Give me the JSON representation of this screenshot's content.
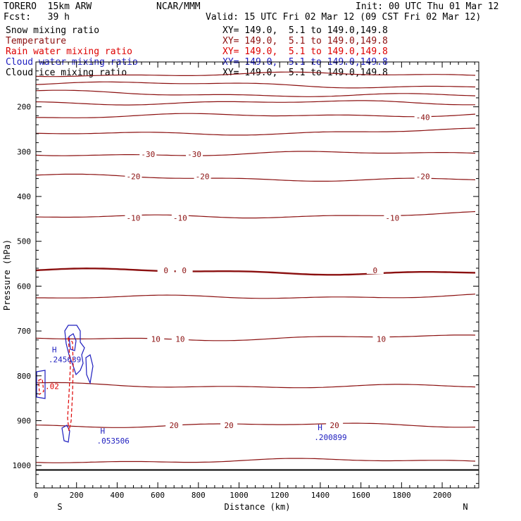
{
  "header": {
    "model": "TORERO  15km ARW",
    "center": "NCAR/MMM",
    "init": "Init: 00 UTC Thu 01 Mar 12",
    "fcst": "Fcst:   39 h",
    "valid": "Valid: 15 UTC Fri 02 Mar 12 (09 CST Fri 02 Mar 12)"
  },
  "fields": [
    {
      "label": "Snow mixing ratio",
      "xy": "",
      "color": "#000000"
    },
    {
      "label": "Temperature",
      "xy": "XY= 149.0,  5.1 to 149.0,149.8",
      "color": "#8b1010"
    },
    {
      "label": "Rain water mixing ratio",
      "xy": "XY= 149.0,  5.1 to 149.0,149.8",
      "color": "#dd0000"
    },
    {
      "label": "Cloud water mixing ratio",
      "xy": "XY= 149.0,  5.1 to 149.0,149.8",
      "color": "#1d1dbf"
    },
    {
      "label": "Cloud ice mixing ratio",
      "xy": "XY= 149.0,  5.1 to 149.0,149.8",
      "color": "#000000"
    }
  ],
  "first_xy": "XY= 149.0,  5.1 to 149.0,149.8",
  "chart_data": {
    "type": "line",
    "xlabel": "Distance (km)",
    "ylabel": "Pressure (hPa)",
    "xlim": [
      0,
      2180
    ],
    "ylim": [
      1050,
      100
    ],
    "xticks": [
      0,
      200,
      400,
      600,
      800,
      1000,
      1200,
      1400,
      1600,
      1800,
      2000
    ],
    "yticks": [
      200,
      300,
      400,
      500,
      600,
      700,
      800,
      900,
      1000
    ],
    "x_end_labels": {
      "left": "S",
      "right": "N"
    },
    "temperature_isotherms": [
      {
        "value": -40,
        "pressure": 128
      },
      {
        "value": -40,
        "pressure": 147
      },
      {
        "value": -40,
        "pressure": 168
      },
      {
        "value": -40,
        "pressure": 190
      },
      {
        "value": -40,
        "pressure": 223,
        "label": "-40",
        "label_x": 1905
      },
      {
        "value": -30,
        "pressure": 262
      },
      {
        "value": -30,
        "pressure": 306,
        "label": "-30",
        "label_x": 552
      },
      {
        "value": -30,
        "pressure": 306,
        "label": "-30",
        "label_x": 780
      },
      {
        "value": -20,
        "pressure": 355,
        "label": "-20",
        "label_x": 480
      },
      {
        "value": -20,
        "pressure": 355,
        "label": "-20",
        "label_x": 820
      },
      {
        "value": -20,
        "pressure": 355,
        "label": "-20",
        "label_x": 1905
      },
      {
        "value": -10,
        "pressure": 448,
        "label": "-10",
        "label_x": 480
      },
      {
        "value": -10,
        "pressure": 448,
        "label": "-10",
        "label_x": 710
      },
      {
        "value": -10,
        "pressure": 448,
        "label": "-10",
        "label_x": 1755
      },
      {
        "value": 0,
        "pressure": 565,
        "label": "0",
        "label_x": 640
      },
      {
        "value": 0,
        "pressure": 565,
        "label": "0",
        "label_x": 730
      },
      {
        "value": 0,
        "pressure": 565,
        "label": "0",
        "label_x": 1670
      },
      {
        "value": 5,
        "pressure": 627
      },
      {
        "value": 10,
        "pressure": 718,
        "label": "10",
        "label_x": 590
      },
      {
        "value": 10,
        "pressure": 718,
        "label": "10",
        "label_x": 710
      },
      {
        "value": 10,
        "pressure": 718,
        "label": "10",
        "label_x": 1700
      },
      {
        "value": 15,
        "pressure": 820
      },
      {
        "value": 20,
        "pressure": 910,
        "label": "20",
        "label_x": 680
      },
      {
        "value": 20,
        "pressure": 910,
        "label": "20",
        "label_x": 950
      },
      {
        "value": 20,
        "pressure": 910,
        "label": "20",
        "label_x": 1470
      },
      {
        "value": 25,
        "pressure": 990
      }
    ],
    "maxima": [
      {
        "label": "H",
        "value": ".245639",
        "x": 62,
        "pressure": 760
      },
      {
        "label": "H",
        "value": ".053506",
        "x": 300,
        "pressure": 942
      },
      {
        "label": "H",
        "value": ".200899",
        "x": 1370,
        "pressure": 934
      },
      {
        "label": "",
        "value": ".02",
        "x": 45,
        "pressure": 820
      }
    ],
    "surface_pressure": 1010
  },
  "colors": {
    "temperature": "#8b1010",
    "rain": "#dd0000",
    "cloud_water": "#1d1dbf",
    "axis": "#000000"
  }
}
